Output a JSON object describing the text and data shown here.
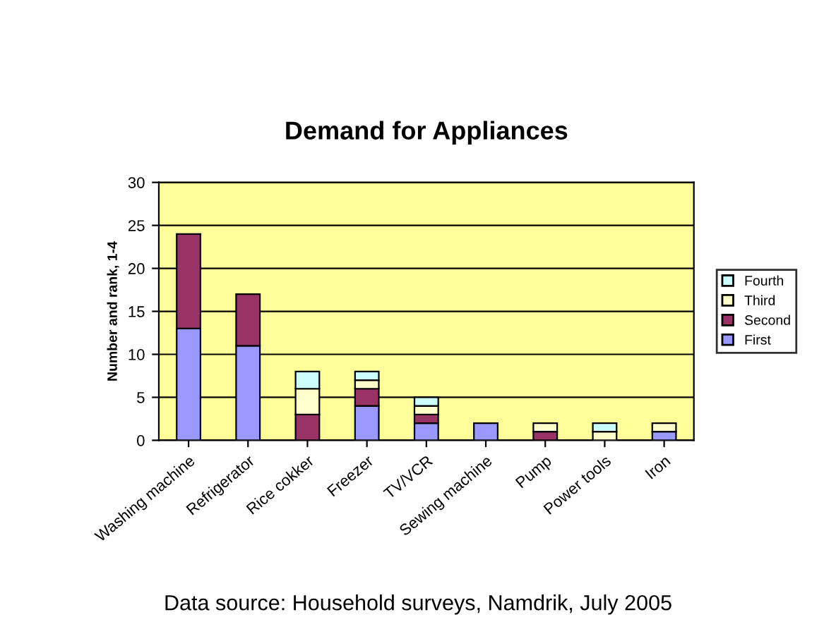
{
  "chart_data": {
    "type": "bar",
    "title": "Demand for Appliances",
    "ylabel": "Number and rank, 1-4",
    "categories": [
      "Washing machine",
      "Refrigerator",
      "Rice cokker",
      "Freezer",
      "TV/VCR",
      "Sewing machine",
      "Pump",
      "Power tools",
      "Iron"
    ],
    "stacked": true,
    "series": [
      {
        "name": "First",
        "color": "#9999ff",
        "values": [
          13,
          11,
          0,
          4,
          2,
          2,
          0,
          0,
          1
        ]
      },
      {
        "name": "Second",
        "color": "#993366",
        "values": [
          11,
          6,
          3,
          2,
          1,
          0,
          1,
          0,
          0
        ]
      },
      {
        "name": "Third",
        "color": "#ffffcc",
        "values": [
          0,
          0,
          3,
          1,
          1,
          0,
          1,
          1,
          1
        ]
      },
      {
        "name": "Fourth",
        "color": "#ccffff",
        "values": [
          0,
          0,
          2,
          1,
          1,
          0,
          0,
          1,
          0
        ]
      }
    ],
    "ylim": [
      0,
      30
    ],
    "yticks": [
      0,
      5,
      10,
      15,
      20,
      25,
      30
    ],
    "grid": "y",
    "legend": "right",
    "annotations": [
      "Data source: Household surveys, Namdrik, July 2005"
    ]
  }
}
